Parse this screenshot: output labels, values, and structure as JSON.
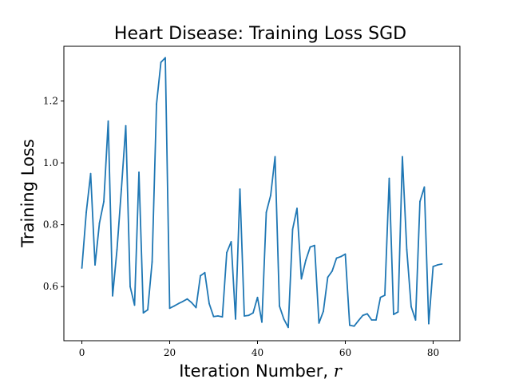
{
  "chart_data": {
    "type": "line",
    "title": "Heart Disease: Training Loss SGD",
    "xlabel": "Iteration Number,",
    "xlabel_var": "r",
    "ylabel": "Training Loss",
    "xlim": [
      -4.1,
      86.1
    ],
    "ylim": [
      0.425,
      1.377
    ],
    "xticks": [
      0,
      20,
      40,
      60,
      80
    ],
    "yticks": [
      0.6,
      0.8,
      1.0,
      1.2
    ],
    "ytick_labels": [
      "0.6",
      "0.8",
      "1.0",
      "1.2"
    ],
    "grid": false,
    "series": [
      {
        "color": "#1f77b4",
        "x": [
          0,
          1,
          2,
          3,
          4,
          5,
          6,
          7,
          8,
          9,
          10,
          11,
          12,
          13,
          14,
          15,
          16,
          17,
          18,
          19,
          20,
          21,
          22,
          23,
          24,
          25,
          26,
          27,
          28,
          29,
          30,
          31,
          32,
          33,
          34,
          35,
          36,
          37,
          38,
          39,
          40,
          41,
          42,
          43,
          44,
          45,
          46,
          47,
          48,
          49,
          50,
          51,
          52,
          53,
          54,
          55,
          56,
          57,
          58,
          59,
          60,
          61,
          62,
          63,
          64,
          65,
          66,
          67,
          68,
          69,
          70,
          71,
          72,
          73,
          74,
          75,
          76,
          77,
          78,
          79,
          80,
          81,
          82
        ],
        "y": [
          0.66,
          0.84,
          0.965,
          0.67,
          0.805,
          0.875,
          1.135,
          0.57,
          0.72,
          0.915,
          1.12,
          0.6,
          0.54,
          0.97,
          0.515,
          0.525,
          0.68,
          1.19,
          1.325,
          1.34,
          0.53,
          0.537,
          0.545,
          0.552,
          0.56,
          0.548,
          0.532,
          0.635,
          0.645,
          0.545,
          0.503,
          0.505,
          0.502,
          0.71,
          0.745,
          0.495,
          0.915,
          0.505,
          0.507,
          0.515,
          0.565,
          0.485,
          0.84,
          0.895,
          1.02,
          0.537,
          0.495,
          0.468,
          0.785,
          0.853,
          0.625,
          0.685,
          0.728,
          0.733,
          0.482,
          0.52,
          0.63,
          0.65,
          0.692,
          0.697,
          0.705,
          0.475,
          0.472,
          0.49,
          0.507,
          0.512,
          0.492,
          0.492,
          0.565,
          0.572,
          0.95,
          0.51,
          0.518,
          1.02,
          0.72,
          0.535,
          0.492,
          0.875,
          0.922,
          0.48,
          0.665,
          0.67,
          0.673
        ]
      }
    ]
  }
}
